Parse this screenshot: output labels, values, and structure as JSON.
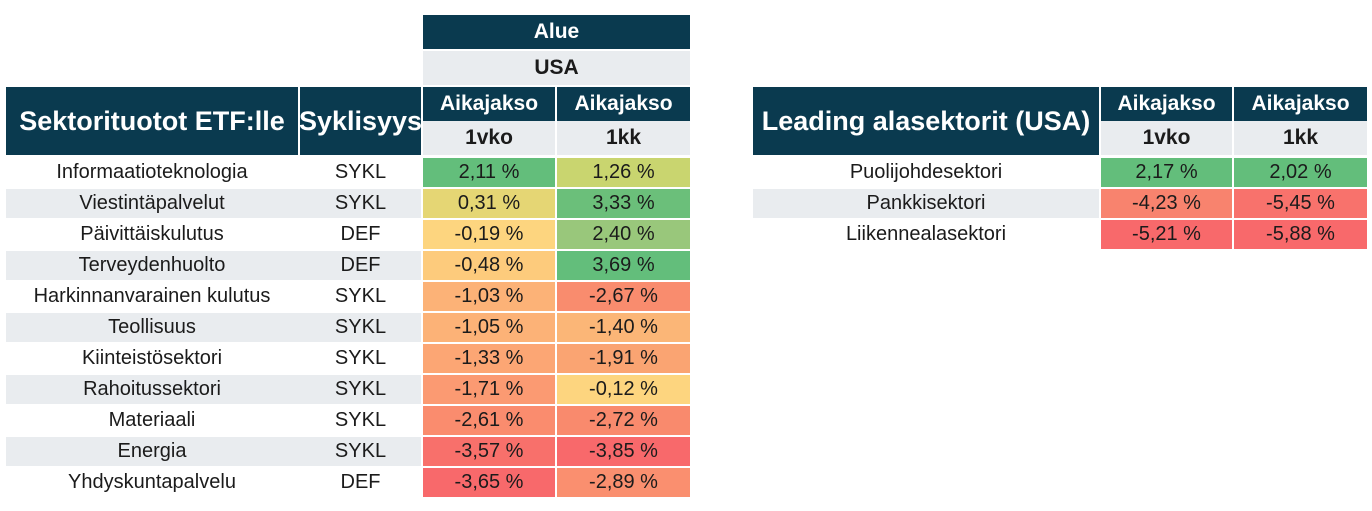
{
  "left_table": {
    "group_header": "Alue",
    "region": "USA",
    "title": "Sektorituotot ETF:lle",
    "cyclicality_header": "Syklisyys",
    "period_label": "Aikajakso",
    "periods": [
      "1vko",
      "1kk"
    ],
    "rows": [
      {
        "sector": "Informaatioteknologia",
        "cycle": "SYKL",
        "w": "2,11 %",
        "m": "1,26 %",
        "wc": "#63be7b",
        "mc": "#c9d56f"
      },
      {
        "sector": "Viestintäpalvelut",
        "cycle": "SYKL",
        "w": "0,31 %",
        "m": "3,33 %",
        "wc": "#e5d674",
        "mc": "#6bbf7a"
      },
      {
        "sector": "Päivittäiskulutus",
        "cycle": "DEF",
        "w": "-0,19 %",
        "m": "2,40 %",
        "wc": "#fdd57f",
        "mc": "#99c77b"
      },
      {
        "sector": "Terveydenhuolto",
        "cycle": "DEF",
        "w": "-0,48 %",
        "m": "3,69 %",
        "wc": "#fdcb7c",
        "mc": "#63be7b"
      },
      {
        "sector": "Harkinnanvarainen kulutus",
        "cycle": "SYKL",
        "w": "-1,03 %",
        "m": "-2,67 %",
        "wc": "#fcb277",
        "mc": "#f98c6e"
      },
      {
        "sector": "Teollisuus",
        "cycle": "SYKL",
        "w": "-1,05 %",
        "m": "-1,40 %",
        "wc": "#fcb277",
        "mc": "#fbb677"
      },
      {
        "sector": "Kiinteistösektori",
        "cycle": "SYKL",
        "w": "-1,33 %",
        "m": "-1,91 %",
        "wc": "#fca674",
        "mc": "#faa472"
      },
      {
        "sector": "Rahoitussektori",
        "cycle": "SYKL",
        "w": "-1,71 %",
        "m": "-0,12 %",
        "wc": "#fb9a72",
        "mc": "#fdd57f"
      },
      {
        "sector": "Materiaali",
        "cycle": "SYKL",
        "w": "-2,61 %",
        "m": "-2,72 %",
        "wc": "#fa8c6e",
        "mc": "#f98a6d"
      },
      {
        "sector": "Energia",
        "cycle": "SYKL",
        "w": "-3,57 %",
        "m": "-3,85 %",
        "wc": "#f8706b",
        "mc": "#f8696b"
      },
      {
        "sector": "Yhdyskuntapalvelu",
        "cycle": "DEF",
        "w": "-3,65 %",
        "m": "-2,89 %",
        "wc": "#f8696b",
        "mc": "#fa8f6f"
      }
    ]
  },
  "right_table": {
    "title": "Leading alasektorit (USA)",
    "period_label": "Aikajakso",
    "periods": [
      "1vko",
      "1kk"
    ],
    "rows": [
      {
        "sector": "Puolijohdesektori",
        "w": "2,17 %",
        "m": "2,02 %",
        "wc": "#63be7b",
        "mc": "#63be7b"
      },
      {
        "sector": "Pankkisektori",
        "w": "-4,23 %",
        "m": "-5,45 %",
        "wc": "#f8836e",
        "mc": "#f8726c"
      },
      {
        "sector": "Liikennealasektori",
        "w": "-5,21 %",
        "m": "-5,88 %",
        "wc": "#f8696b",
        "mc": "#f8696b"
      }
    ]
  }
}
